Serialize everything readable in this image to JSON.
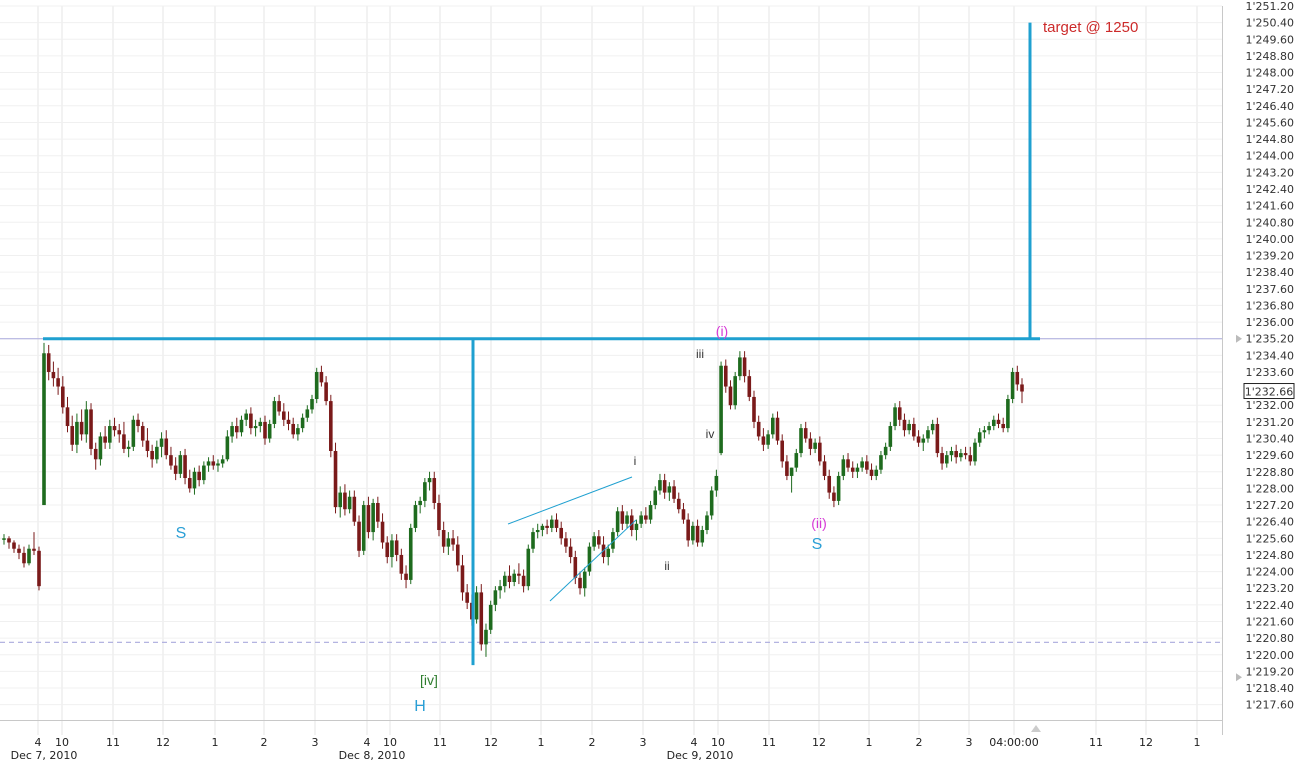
{
  "chart_data": {
    "type": "candlestick",
    "title": "",
    "xlabel": "",
    "ylabel": "",
    "ylim": [
      1217.2,
      1251.2
    ],
    "y_ticks": [
      "1'251.20",
      "1'250.40",
      "1'249.60",
      "1'248.80",
      "1'248.00",
      "1'247.20",
      "1'246.40",
      "1'245.60",
      "1'244.80",
      "1'244.00",
      "1'243.20",
      "1'242.40",
      "1'241.60",
      "1'240.80",
      "1'240.00",
      "1'239.20",
      "1'238.40",
      "1'237.60",
      "1'236.80",
      "1'236.00",
      "1'235.20",
      "1'234.40",
      "1'233.60",
      "1'232.80",
      "1'232.00",
      "1'231.20",
      "1'230.40",
      "1'229.60",
      "1'228.80",
      "1'228.00",
      "1'227.20",
      "1'226.40",
      "1'225.60",
      "1'224.80",
      "1'224.00",
      "1'223.20",
      "1'222.40",
      "1'221.60",
      "1'220.80",
      "1'220.00",
      "1'219.20",
      "1'218.40",
      "1'217.60"
    ],
    "x_ticks": [
      "4",
      "10",
      "11",
      "12",
      "1",
      "2",
      "3",
      "4",
      "10",
      "11",
      "12",
      "1",
      "2",
      "3",
      "4",
      "10",
      "11",
      "12",
      "1",
      "2",
      "3",
      "04:00:00",
      "11",
      "12",
      "1"
    ],
    "date_labels": [
      "Dec 7, 2010",
      "Dec 8, 2010",
      "Dec 9, 2010"
    ],
    "last_price": "1'232.66",
    "candles_ohlc": [
      [
        1225.6,
        1225.8,
        1225.3,
        1225.6
      ],
      [
        1225.6,
        1225.7,
        1225.1,
        1225.4
      ],
      [
        1225.4,
        1225.5,
        1224.9,
        1225.1
      ],
      [
        1225.1,
        1225.3,
        1224.6,
        1224.9
      ],
      [
        1224.9,
        1225.2,
        1224.2,
        1224.4
      ],
      [
        1224.4,
        1225.3,
        1224.3,
        1225.1
      ],
      [
        1225.1,
        1225.9,
        1224.8,
        1225.0
      ],
      [
        1225.0,
        1225.2,
        1223.1,
        1223.3
      ],
      [
        1227.2,
        1235.0,
        1227.2,
        1234.5
      ],
      [
        1234.5,
        1234.9,
        1233.2,
        1233.6
      ],
      [
        1233.6,
        1234.1,
        1232.9,
        1233.3
      ],
      [
        1233.3,
        1233.8,
        1232.5,
        1232.9
      ],
      [
        1232.9,
        1233.4,
        1231.6,
        1231.9
      ],
      [
        1231.9,
        1232.4,
        1230.7,
        1231.0
      ],
      [
        1231.0,
        1231.5,
        1229.8,
        1230.1
      ],
      [
        1230.1,
        1231.6,
        1229.7,
        1231.2
      ],
      [
        1231.2,
        1231.8,
        1230.3,
        1230.6
      ],
      [
        1230.6,
        1232.2,
        1230.2,
        1231.8
      ],
      [
        1231.8,
        1232.1,
        1229.6,
        1229.9
      ],
      [
        1229.9,
        1230.2,
        1228.9,
        1229.4
      ],
      [
        1229.4,
        1230.7,
        1229.1,
        1230.5
      ],
      [
        1230.5,
        1231.0,
        1229.9,
        1230.2
      ],
      [
        1230.2,
        1231.3,
        1229.9,
        1231.0
      ],
      [
        1231.0,
        1231.4,
        1230.5,
        1230.8
      ],
      [
        1230.8,
        1231.1,
        1230.2,
        1230.6
      ],
      [
        1230.6,
        1231.2,
        1229.7,
        1229.9
      ],
      [
        1229.9,
        1230.3,
        1229.5,
        1230.0
      ],
      [
        1230.0,
        1231.5,
        1229.8,
        1231.3
      ],
      [
        1231.3,
        1231.6,
        1230.7,
        1231.0
      ],
      [
        1231.0,
        1231.2,
        1230.0,
        1230.3
      ],
      [
        1230.3,
        1230.9,
        1229.5,
        1229.8
      ],
      [
        1229.8,
        1230.1,
        1229.0,
        1229.4
      ],
      [
        1229.4,
        1230.3,
        1229.2,
        1230.0
      ],
      [
        1230.0,
        1230.7,
        1229.5,
        1230.4
      ],
      [
        1230.4,
        1230.8,
        1229.4,
        1229.6
      ],
      [
        1229.6,
        1230.0,
        1228.9,
        1229.1
      ],
      [
        1229.1,
        1229.5,
        1228.4,
        1228.7
      ],
      [
        1228.7,
        1229.8,
        1228.5,
        1229.6
      ],
      [
        1229.6,
        1229.9,
        1228.2,
        1228.5
      ],
      [
        1228.5,
        1228.9,
        1227.8,
        1228.0
      ],
      [
        1228.0,
        1229.0,
        1227.7,
        1228.8
      ],
      [
        1228.8,
        1229.1,
        1228.1,
        1228.4
      ],
      [
        1228.4,
        1229.3,
        1228.2,
        1229.1
      ],
      [
        1229.1,
        1229.5,
        1228.8,
        1229.3
      ],
      [
        1229.3,
        1229.6,
        1228.9,
        1229.1
      ],
      [
        1229.1,
        1229.4,
        1228.8,
        1229.2
      ],
      [
        1229.2,
        1229.6,
        1229.0,
        1229.4
      ],
      [
        1229.4,
        1230.8,
        1229.3,
        1230.5
      ],
      [
        1230.5,
        1231.2,
        1230.2,
        1231.0
      ],
      [
        1231.0,
        1231.4,
        1230.4,
        1230.7
      ],
      [
        1230.7,
        1231.5,
        1230.5,
        1231.3
      ],
      [
        1231.3,
        1231.8,
        1231.0,
        1231.6
      ],
      [
        1231.6,
        1231.9,
        1230.6,
        1230.9
      ],
      [
        1230.9,
        1231.3,
        1230.5,
        1231.0
      ],
      [
        1231.0,
        1231.4,
        1230.7,
        1231.2
      ],
      [
        1231.2,
        1231.5,
        1230.1,
        1230.4
      ],
      [
        1230.4,
        1231.3,
        1230.2,
        1231.1
      ],
      [
        1231.1,
        1232.4,
        1230.9,
        1232.2
      ],
      [
        1232.2,
        1232.5,
        1231.5,
        1231.7
      ],
      [
        1231.7,
        1232.1,
        1231.0,
        1231.3
      ],
      [
        1231.3,
        1231.7,
        1230.8,
        1231.1
      ],
      [
        1231.1,
        1231.4,
        1230.4,
        1230.6
      ],
      [
        1230.6,
        1231.1,
        1230.3,
        1230.9
      ],
      [
        1230.9,
        1231.6,
        1230.7,
        1231.4
      ],
      [
        1231.4,
        1232.0,
        1231.2,
        1231.8
      ],
      [
        1231.8,
        1232.5,
        1231.6,
        1232.3
      ],
      [
        1232.3,
        1233.8,
        1232.1,
        1233.6
      ],
      [
        1233.6,
        1233.9,
        1232.9,
        1233.1
      ],
      [
        1233.1,
        1233.4,
        1232.0,
        1232.2
      ],
      [
        1232.2,
        1232.5,
        1229.5,
        1229.8
      ],
      [
        1229.8,
        1230.2,
        1226.8,
        1227.1
      ],
      [
        1227.1,
        1228.1,
        1226.6,
        1227.8
      ],
      [
        1227.8,
        1228.2,
        1226.7,
        1227.0
      ],
      [
        1227.0,
        1227.9,
        1226.8,
        1227.6
      ],
      [
        1227.6,
        1227.9,
        1226.2,
        1226.4
      ],
      [
        1226.4,
        1226.7,
        1224.7,
        1225.0
      ],
      [
        1225.0,
        1227.4,
        1224.8,
        1227.2
      ],
      [
        1227.2,
        1227.6,
        1225.6,
        1225.9
      ],
      [
        1225.9,
        1227.5,
        1225.5,
        1227.3
      ],
      [
        1227.3,
        1227.6,
        1226.1,
        1226.4
      ],
      [
        1226.4,
        1226.8,
        1225.1,
        1225.4
      ],
      [
        1225.4,
        1225.7,
        1224.4,
        1224.7
      ],
      [
        1224.7,
        1225.8,
        1224.2,
        1225.5
      ],
      [
        1225.5,
        1225.8,
        1224.5,
        1224.8
      ],
      [
        1224.8,
        1225.1,
        1223.6,
        1223.9
      ],
      [
        1223.9,
        1224.3,
        1223.2,
        1223.6
      ],
      [
        1223.6,
        1226.3,
        1223.4,
        1226.1
      ],
      [
        1226.1,
        1227.4,
        1225.9,
        1227.2
      ],
      [
        1227.2,
        1227.6,
        1226.8,
        1227.4
      ],
      [
        1227.4,
        1228.5,
        1227.1,
        1228.3
      ],
      [
        1228.3,
        1228.8,
        1227.9,
        1228.5
      ],
      [
        1228.5,
        1228.8,
        1227.0,
        1227.3
      ],
      [
        1227.3,
        1227.7,
        1225.7,
        1226.0
      ],
      [
        1226.0,
        1226.4,
        1224.9,
        1225.2
      ],
      [
        1225.2,
        1225.9,
        1224.8,
        1225.6
      ],
      [
        1225.6,
        1226.0,
        1225.0,
        1225.3
      ],
      [
        1225.3,
        1225.7,
        1224.0,
        1224.3
      ],
      [
        1224.3,
        1224.8,
        1222.6,
        1223.0
      ],
      [
        1223.0,
        1223.4,
        1222.2,
        1222.5
      ],
      [
        1222.5,
        1222.9,
        1221.4,
        1221.7
      ],
      [
        1221.7,
        1223.3,
        1221.5,
        1223.0
      ],
      [
        1223.0,
        1223.4,
        1220.2,
        1220.5
      ],
      [
        1220.5,
        1221.5,
        1219.9,
        1221.2
      ],
      [
        1221.2,
        1222.6,
        1221.0,
        1222.4
      ],
      [
        1222.4,
        1223.3,
        1222.1,
        1223.1
      ],
      [
        1223.1,
        1223.6,
        1222.7,
        1223.3
      ],
      [
        1223.3,
        1224.0,
        1223.0,
        1223.8
      ],
      [
        1223.8,
        1224.3,
        1223.2,
        1223.5
      ],
      [
        1223.5,
        1224.1,
        1223.3,
        1223.9
      ],
      [
        1223.9,
        1224.4,
        1223.4,
        1223.8
      ],
      [
        1223.8,
        1224.1,
        1223.0,
        1223.3
      ],
      [
        1223.3,
        1225.3,
        1223.1,
        1225.1
      ],
      [
        1225.1,
        1226.1,
        1224.9,
        1225.9
      ],
      [
        1225.9,
        1226.3,
        1225.6,
        1226.0
      ],
      [
        1226.0,
        1226.3,
        1225.7,
        1226.2
      ],
      [
        1226.2,
        1226.5,
        1225.8,
        1226.1
      ],
      [
        1226.1,
        1226.7,
        1225.9,
        1226.5
      ],
      [
        1226.5,
        1226.8,
        1225.9,
        1226.1
      ],
      [
        1226.1,
        1226.4,
        1225.3,
        1225.6
      ],
      [
        1225.6,
        1225.9,
        1224.9,
        1225.2
      ],
      [
        1225.2,
        1225.6,
        1224.4,
        1224.7
      ],
      [
        1224.7,
        1225.0,
        1223.4,
        1223.7
      ],
      [
        1223.7,
        1224.0,
        1222.9,
        1223.2
      ],
      [
        1223.2,
        1224.2,
        1222.8,
        1224.0
      ],
      [
        1224.0,
        1225.4,
        1223.8,
        1225.2
      ],
      [
        1225.2,
        1225.9,
        1225.0,
        1225.7
      ],
      [
        1225.7,
        1226.0,
        1225.1,
        1225.3
      ],
      [
        1225.3,
        1225.7,
        1224.4,
        1224.7
      ],
      [
        1224.7,
        1225.3,
        1224.3,
        1225.1
      ],
      [
        1225.1,
        1226.1,
        1224.9,
        1225.9
      ],
      [
        1225.9,
        1227.1,
        1225.7,
        1226.9
      ],
      [
        1226.9,
        1227.2,
        1226.0,
        1226.3
      ],
      [
        1226.3,
        1226.9,
        1226.1,
        1226.7
      ],
      [
        1226.7,
        1227.0,
        1225.7,
        1226.0
      ],
      [
        1226.0,
        1226.5,
        1225.5,
        1226.3
      ],
      [
        1226.3,
        1226.9,
        1226.1,
        1226.7
      ],
      [
        1226.7,
        1227.1,
        1226.3,
        1226.5
      ],
      [
        1226.5,
        1227.4,
        1226.3,
        1227.2
      ],
      [
        1227.2,
        1228.1,
        1227.0,
        1227.9
      ],
      [
        1227.9,
        1228.7,
        1227.7,
        1228.4
      ],
      [
        1228.4,
        1228.7,
        1227.5,
        1227.8
      ],
      [
        1227.8,
        1228.3,
        1227.4,
        1228.1
      ],
      [
        1228.1,
        1228.4,
        1227.3,
        1227.5
      ],
      [
        1227.5,
        1227.8,
        1226.8,
        1227.0
      ],
      [
        1227.0,
        1227.3,
        1226.3,
        1226.5
      ],
      [
        1226.5,
        1226.8,
        1225.2,
        1225.5
      ],
      [
        1225.5,
        1226.4,
        1225.3,
        1226.2
      ],
      [
        1226.2,
        1226.5,
        1225.2,
        1225.4
      ],
      [
        1225.4,
        1226.2,
        1225.2,
        1226.0
      ],
      [
        1226.0,
        1226.9,
        1225.8,
        1226.7
      ],
      [
        1226.7,
        1228.1,
        1226.5,
        1227.9
      ],
      [
        1227.9,
        1228.9,
        1227.6,
        1228.6
      ],
      [
        1229.7,
        1234.1,
        1229.6,
        1233.9
      ],
      [
        1233.9,
        1234.2,
        1232.6,
        1232.9
      ],
      [
        1232.9,
        1233.2,
        1231.8,
        1232.0
      ],
      [
        1232.0,
        1233.6,
        1231.8,
        1233.4
      ],
      [
        1233.4,
        1234.6,
        1233.2,
        1234.3
      ],
      [
        1234.3,
        1234.6,
        1233.1,
        1233.4
      ],
      [
        1233.4,
        1233.7,
        1232.2,
        1232.4
      ],
      [
        1232.4,
        1232.7,
        1230.9,
        1231.2
      ],
      [
        1231.2,
        1231.5,
        1230.3,
        1230.5
      ],
      [
        1230.5,
        1230.9,
        1229.8,
        1230.1
      ],
      [
        1230.1,
        1230.8,
        1229.9,
        1230.6
      ],
      [
        1230.6,
        1231.6,
        1230.4,
        1231.4
      ],
      [
        1231.4,
        1231.7,
        1230.1,
        1230.3
      ],
      [
        1230.3,
        1230.6,
        1229.0,
        1229.3
      ],
      [
        1229.3,
        1229.6,
        1228.4,
        1228.6
      ],
      [
        1228.6,
        1229.0,
        1227.8,
        1229.0
      ],
      [
        1229.0,
        1229.9,
        1228.8,
        1229.7
      ],
      [
        1229.7,
        1231.1,
        1229.5,
        1230.9
      ],
      [
        1230.9,
        1231.2,
        1230.2,
        1230.4
      ],
      [
        1230.4,
        1230.7,
        1229.6,
        1229.9
      ],
      [
        1229.9,
        1230.4,
        1229.7,
        1230.2
      ],
      [
        1230.2,
        1230.5,
        1229.1,
        1229.3
      ],
      [
        1229.3,
        1229.6,
        1228.4,
        1228.6
      ],
      [
        1228.6,
        1228.9,
        1227.5,
        1227.8
      ],
      [
        1227.8,
        1228.1,
        1227.1,
        1227.4
      ],
      [
        1227.4,
        1228.8,
        1227.2,
        1228.6
      ],
      [
        1228.6,
        1229.6,
        1228.4,
        1229.4
      ],
      [
        1229.4,
        1229.7,
        1228.8,
        1229.0
      ],
      [
        1229.0,
        1229.3,
        1228.5,
        1228.8
      ],
      [
        1228.8,
        1229.2,
        1228.5,
        1229.0
      ],
      [
        1229.0,
        1229.5,
        1228.8,
        1229.3
      ],
      [
        1229.3,
        1229.6,
        1228.7,
        1228.9
      ],
      [
        1228.9,
        1229.2,
        1228.4,
        1228.6
      ],
      [
        1228.6,
        1229.1,
        1228.4,
        1228.9
      ],
      [
        1228.9,
        1229.8,
        1228.7,
        1229.6
      ],
      [
        1229.6,
        1230.2,
        1229.4,
        1230.0
      ],
      [
        1230.0,
        1231.2,
        1229.8,
        1231.0
      ],
      [
        1231.0,
        1232.1,
        1230.8,
        1231.9
      ],
      [
        1231.9,
        1232.2,
        1231.0,
        1231.3
      ],
      [
        1231.3,
        1231.6,
        1230.5,
        1230.8
      ],
      [
        1230.8,
        1231.3,
        1230.6,
        1231.1
      ],
      [
        1231.1,
        1231.4,
        1230.3,
        1230.5
      ],
      [
        1230.5,
        1230.8,
        1230.0,
        1230.2
      ],
      [
        1230.2,
        1230.6,
        1229.8,
        1230.4
      ],
      [
        1230.4,
        1231.0,
        1230.2,
        1230.8
      ],
      [
        1230.8,
        1231.3,
        1230.6,
        1231.1
      ],
      [
        1231.1,
        1231.4,
        1229.5,
        1229.7
      ],
      [
        1229.7,
        1230.0,
        1228.9,
        1229.2
      ],
      [
        1229.2,
        1229.8,
        1229.0,
        1229.6
      ],
      [
        1229.6,
        1230.0,
        1229.3,
        1229.8
      ],
      [
        1229.8,
        1230.1,
        1229.2,
        1229.5
      ],
      [
        1229.5,
        1229.9,
        1229.3,
        1229.7
      ],
      [
        1229.7,
        1230.0,
        1229.4,
        1229.6
      ],
      [
        1229.6,
        1230.0,
        1229.1,
        1229.3
      ],
      [
        1229.3,
        1230.4,
        1229.1,
        1230.2
      ],
      [
        1230.2,
        1230.9,
        1230.0,
        1230.7
      ],
      [
        1230.7,
        1231.0,
        1230.4,
        1230.8
      ],
      [
        1230.8,
        1231.2,
        1230.6,
        1231.0
      ],
      [
        1231.0,
        1231.5,
        1230.8,
        1231.3
      ],
      [
        1231.3,
        1231.6,
        1230.9,
        1231.1
      ],
      [
        1231.1,
        1231.4,
        1230.7,
        1230.9
      ],
      [
        1230.9,
        1232.5,
        1230.7,
        1232.3
      ],
      [
        1232.3,
        1233.8,
        1232.1,
        1233.6
      ],
      [
        1233.6,
        1233.9,
        1232.7,
        1233.0
      ],
      [
        1233.0,
        1233.3,
        1232.1,
        1232.66
      ]
    ],
    "annotations": [
      {
        "text": "target @ 1250",
        "color": "#cc2a2a"
      },
      {
        "text": "S",
        "color": "#2a9fd6"
      },
      {
        "text": "H",
        "color": "#2a9fd6"
      },
      {
        "text": "S",
        "color": "#2a9fd6"
      },
      {
        "text": "[iv]",
        "color": "#2e7d2e"
      },
      {
        "text": "(i)",
        "color": "#d63ad6"
      },
      {
        "text": "(ii)",
        "color": "#d63ad6"
      },
      {
        "text": "i",
        "color": "#333333"
      },
      {
        "text": "ii",
        "color": "#333333"
      },
      {
        "text": "iii",
        "color": "#333333"
      },
      {
        "text": "iv",
        "color": "#333333"
      }
    ],
    "neckline_level": 1235.2,
    "target_level": 1250.4,
    "support_level": 1220.6,
    "grid": true,
    "colors": {
      "bull": "#1e6b1e",
      "bear": "#7a1a1a",
      "trendline": "#1fa0d0",
      "grid": "#e6e6e6",
      "hline": "#aaaadd"
    }
  }
}
